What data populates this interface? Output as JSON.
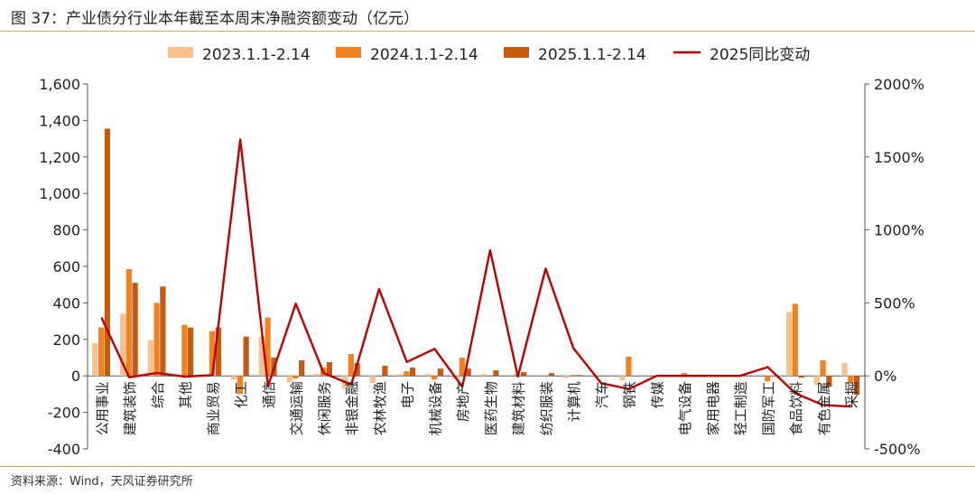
{
  "title": "图 37：产业债分行业本年截至本周末净融资额变动（亿元）",
  "source": "资料来源：Wind，天风证券研究所",
  "colors": {
    "s2023": "#f8c08c",
    "s2024": "#f2811e",
    "s2025": "#c55a11",
    "line": "#c00000",
    "rule": "#e0a46a"
  },
  "chart_data": {
    "type": "bar",
    "categories": [
      "公用事业",
      "建筑装饰",
      "综合",
      "其他",
      "商业贸易",
      "化工",
      "通信",
      "交通运输",
      "休闲服务",
      "非银金融",
      "农林牧渔",
      "电子",
      "机械设备",
      "房地产",
      "医药生物",
      "建筑材料",
      "纺织服装",
      "计算机",
      "汽车",
      "钢铁",
      "传媒",
      "电气设备",
      "家用电器",
      "轻工制造",
      "国防军工",
      "食品饮料",
      "有色金属",
      "采掘"
    ],
    "series": [
      {
        "name": "2023.1.1-2.14",
        "axis": "left",
        "values": [
          180,
          340,
          195,
          0,
          0,
          -20,
          215,
          -35,
          10,
          -70,
          -40,
          10,
          10,
          -15,
          10,
          0,
          0,
          -10,
          0,
          -25,
          0,
          0,
          0,
          0,
          0,
          350,
          -50,
          70
        ]
      },
      {
        "name": "2024.1.1-2.14",
        "axis": "left",
        "values": [
          265,
          585,
          400,
          280,
          245,
          -100,
          320,
          -15,
          45,
          120,
          0,
          25,
          -20,
          100,
          0,
          10,
          0,
          5,
          0,
          105,
          0,
          15,
          0,
          0,
          -30,
          395,
          85,
          -40
        ]
      },
      {
        "name": "2025.1.1-2.14",
        "axis": "left",
        "values": [
          1355,
          510,
          490,
          265,
          265,
          215,
          100,
          85,
          75,
          70,
          55,
          45,
          40,
          40,
          30,
          20,
          15,
          5,
          0,
          0,
          0,
          0,
          0,
          0,
          0,
          -10,
          -60,
          -105
        ]
      },
      {
        "name": "2025同比变动",
        "axis": "right",
        "type": "line",
        "values": [
          400,
          -10,
          20,
          -5,
          5,
          1620,
          -70,
          495,
          20,
          -60,
          595,
          95,
          185,
          -75,
          860,
          -5,
          735,
          190,
          -50,
          -90,
          0,
          0,
          0,
          0,
          60,
          -120,
          -200,
          -210
        ]
      }
    ],
    "y_left": {
      "ticks": [
        "1,600",
        "1,400",
        "1,200",
        "1,000",
        "800",
        "600",
        "400",
        "200",
        "0",
        "-200",
        "-400"
      ],
      "min": -400,
      "max": 1600
    },
    "y_right": {
      "ticks": [
        "2000%",
        "1500%",
        "1000%",
        "500%",
        "0%",
        "-500%"
      ],
      "min": -500,
      "max": 2000
    },
    "legend_position": "top",
    "grid": false
  }
}
